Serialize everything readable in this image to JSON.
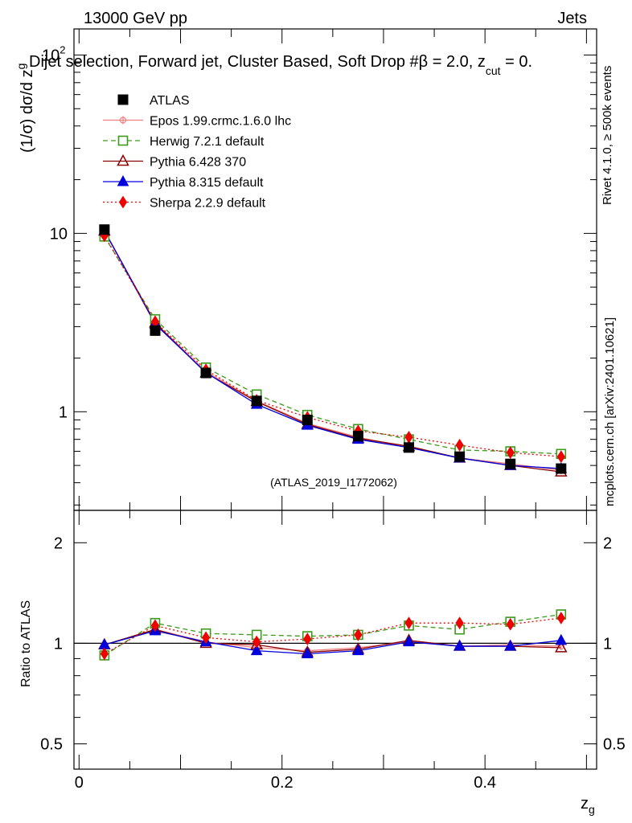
{
  "header": {
    "energy_label": "13000 GeV pp",
    "process_label": "Jets",
    "selection_title": "Dijet selection, Forward jet, Cluster Based, Soft Drop #β = 2.0, z",
    "selection_sub": "cut",
    "selection_tail": " = 0.",
    "rivet_label": "Rivet 4.1.0, ≥ 500k events",
    "mcplots_label": "mcplots.cern.ch [arXiv:2401.10621]",
    "analysis_label": "(ATLAS_2019_I1772062)"
  },
  "chart_data": {
    "type": "line",
    "ylabel_main": "(1/σ) dσ/d z",
    "ylabel_main_sub": "g",
    "ylabel_ratio": "Ratio to ATLAS",
    "xlabel": "z",
    "xlabel_sub": "g",
    "xlim": [
      -0.005,
      0.51
    ],
    "ylim_main": [
      0.28,
      140
    ],
    "ylim_ratio": [
      0.42,
      2.5
    ],
    "main_ytick_labels": [
      {
        "v": 1,
        "t": "1"
      },
      {
        "v": 10,
        "t": "10"
      }
    ],
    "main_ytick_top": {
      "base": "10",
      "exp": "2"
    },
    "ratio_ytick_labels": [
      {
        "v": 0.5,
        "t": "0.5"
      },
      {
        "v": 1,
        "t": "1"
      },
      {
        "v": 2,
        "t": "2"
      }
    ],
    "xtick_labels": [
      {
        "v": 0,
        "t": "0"
      },
      {
        "v": 0.2,
        "t": "0.2"
      },
      {
        "v": 0.4,
        "t": "0.4"
      }
    ],
    "x": [
      0.025,
      0.075,
      0.125,
      0.175,
      0.225,
      0.275,
      0.325,
      0.375,
      0.425,
      0.475
    ],
    "data": {
      "name": "ATLAS",
      "values": [
        10.5,
        2.85,
        1.65,
        1.15,
        0.9,
        0.73,
        0.63,
        0.56,
        0.51,
        0.48
      ]
    },
    "series": [
      {
        "name": "Epos 1.99.crmc.1.6.0 lhc",
        "color": "#f08080",
        "dash": "",
        "marker": "cross",
        "values": [
          10.4,
          3.15,
          1.68,
          1.15,
          0.86,
          0.72,
          0.63,
          0.55,
          0.51,
          0.47
        ]
      },
      {
        "name": "Herwig 7.2.1 default",
        "color": "#3a9a1a",
        "dash": "6,4",
        "marker": "square-open",
        "values": [
          9.6,
          3.3,
          1.77,
          1.25,
          0.96,
          0.8,
          0.7,
          0.61,
          0.6,
          0.58
        ]
      },
      {
        "name": "Pythia 6.428 370",
        "color": "#8b0000",
        "dash": "",
        "marker": "triangle-open",
        "values": [
          10.3,
          3.15,
          1.65,
          1.14,
          0.85,
          0.71,
          0.64,
          0.55,
          0.5,
          0.46
        ]
      },
      {
        "name": "Pythia 8.315 default",
        "color": "#0000dd",
        "dash": "",
        "marker": "triangle",
        "values": [
          10.35,
          3.1,
          1.66,
          1.1,
          0.84,
          0.7,
          0.63,
          0.55,
          0.5,
          0.48
        ]
      },
      {
        "name": "Sherpa 2.2.9 default",
        "color": "#ee0000",
        "dash": "2,3",
        "marker": "diamond",
        "values": [
          9.7,
          3.2,
          1.72,
          1.16,
          0.93,
          0.78,
          0.72,
          0.65,
          0.59,
          0.56
        ]
      }
    ],
    "ratios": [
      [
        0.99,
        1.1,
        1.01,
        0.97,
        0.95,
        0.97,
        1.01,
        0.98,
        0.99,
        0.98
      ],
      [
        0.92,
        1.15,
        1.07,
        1.06,
        1.05,
        1.06,
        1.13,
        1.1,
        1.16,
        1.22
      ],
      [
        0.99,
        1.1,
        1.0,
        0.99,
        0.94,
        0.96,
        1.02,
        0.98,
        0.98,
        0.97
      ],
      [
        0.99,
        1.09,
        1.01,
        0.95,
        0.93,
        0.95,
        1.01,
        0.98,
        0.98,
        1.02
      ],
      [
        0.93,
        1.13,
        1.04,
        1.01,
        1.03,
        1.06,
        1.15,
        1.15,
        1.14,
        1.19
      ]
    ]
  }
}
